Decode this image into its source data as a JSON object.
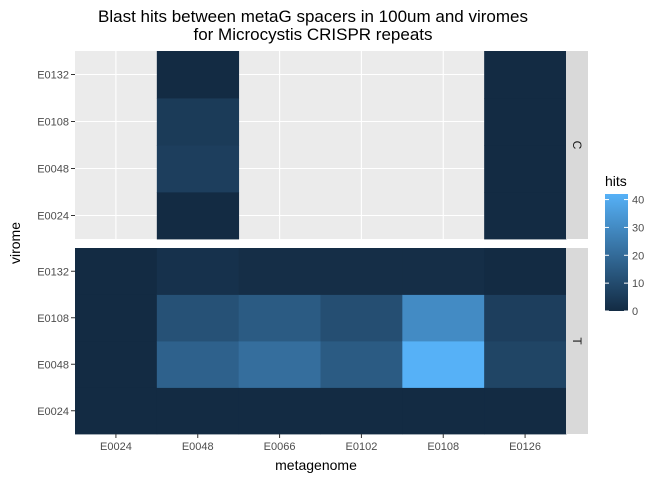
{
  "chart_data": {
    "type": "heatmap",
    "title_lines": [
      "Blast hits between metaG spacers in 100um and viromes",
      "for Microcystis CRISPR repeats"
    ],
    "xlabel": "metagenome",
    "ylabel": "virome",
    "x_categories": [
      "E0024",
      "E0048",
      "E0066",
      "E0102",
      "E0108",
      "E0126"
    ],
    "y_categories": [
      "E0024",
      "E0048",
      "E0108",
      "E0132"
    ],
    "legend": {
      "title": "hits",
      "ticks": [
        0,
        10,
        20,
        30,
        40
      ],
      "min": 0,
      "max": 42,
      "low_color": "#132B43",
      "high_color": "#56B1F7",
      "position": "right"
    },
    "grid": true,
    "facets": [
      {
        "label": "C",
        "cells": [
          {
            "x": "E0048",
            "y": "E0024",
            "value": 0
          },
          {
            "x": "E0048",
            "y": "E0048",
            "value": 6
          },
          {
            "x": "E0048",
            "y": "E0108",
            "value": 5
          },
          {
            "x": "E0048",
            "y": "E0132",
            "value": 0
          },
          {
            "x": "E0126",
            "y": "E0024",
            "value": 0
          },
          {
            "x": "E0126",
            "y": "E0048",
            "value": 0
          },
          {
            "x": "E0126",
            "y": "E0108",
            "value": 0
          },
          {
            "x": "E0126",
            "y": "E0132",
            "value": 0
          }
        ]
      },
      {
        "label": "T",
        "cells": [
          {
            "x": "E0024",
            "y": "E0024",
            "value": 0
          },
          {
            "x": "E0024",
            "y": "E0048",
            "value": 0
          },
          {
            "x": "E0024",
            "y": "E0108",
            "value": 0
          },
          {
            "x": "E0024",
            "y": "E0132",
            "value": 0
          },
          {
            "x": "E0048",
            "y": "E0024",
            "value": 0
          },
          {
            "x": "E0048",
            "y": "E0048",
            "value": 17
          },
          {
            "x": "E0048",
            "y": "E0108",
            "value": 12
          },
          {
            "x": "E0048",
            "y": "E0132",
            "value": 2
          },
          {
            "x": "E0066",
            "y": "E0024",
            "value": 0
          },
          {
            "x": "E0066",
            "y": "E0048",
            "value": 21
          },
          {
            "x": "E0066",
            "y": "E0108",
            "value": 15
          },
          {
            "x": "E0066",
            "y": "E0132",
            "value": 1
          },
          {
            "x": "E0102",
            "y": "E0024",
            "value": 0
          },
          {
            "x": "E0102",
            "y": "E0048",
            "value": 15
          },
          {
            "x": "E0102",
            "y": "E0108",
            "value": 11
          },
          {
            "x": "E0102",
            "y": "E0132",
            "value": 1
          },
          {
            "x": "E0108",
            "y": "E0024",
            "value": 0
          },
          {
            "x": "E0108",
            "y": "E0048",
            "value": 42
          },
          {
            "x": "E0108",
            "y": "E0108",
            "value": 30
          },
          {
            "x": "E0108",
            "y": "E0132",
            "value": 1
          },
          {
            "x": "E0126",
            "y": "E0024",
            "value": 0
          },
          {
            "x": "E0126",
            "y": "E0048",
            "value": 8
          },
          {
            "x": "E0126",
            "y": "E0108",
            "value": 6
          },
          {
            "x": "E0126",
            "y": "E0132",
            "value": 0
          }
        ]
      }
    ]
  }
}
